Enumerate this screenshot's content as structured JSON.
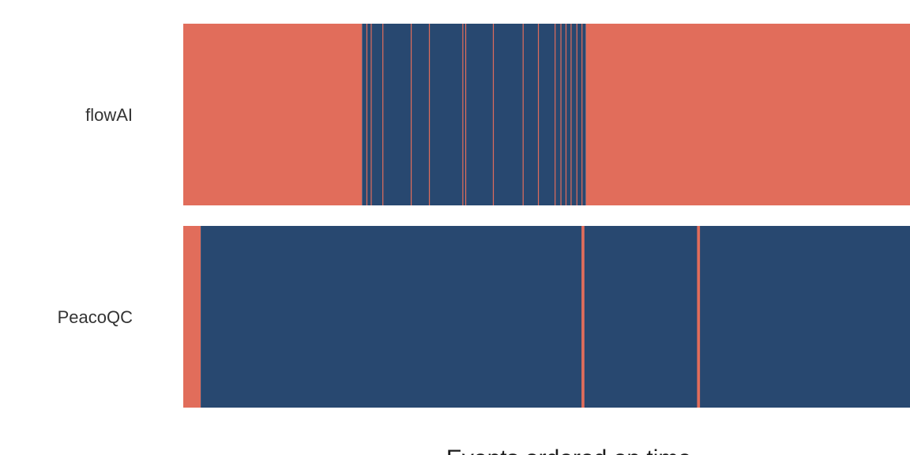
{
  "chart_data": {
    "type": "heatmap",
    "xlabel": "Events ordered on time",
    "x_range": [
      0,
      100
    ],
    "colors": {
      "segment_a": "#E16D5B",
      "segment_b": "#284870"
    },
    "rows": [
      {
        "label": "flowAI",
        "segments": [
          {
            "start": 0.0,
            "end": 24.6,
            "color": "#E16D5B"
          },
          {
            "start": 24.6,
            "end": 55.4,
            "color": "#284870"
          },
          {
            "start": 55.4,
            "end": 100.0,
            "color": "#E16D5B"
          }
        ],
        "stripes": [
          {
            "at": 25.2,
            "width": 0.12,
            "color": "#E16D5B"
          },
          {
            "at": 25.8,
            "width": 0.12,
            "color": "#E16D5B"
          },
          {
            "at": 27.4,
            "width": 0.12,
            "color": "#E16D5B"
          },
          {
            "at": 31.3,
            "width": 0.12,
            "color": "#E16D5B"
          },
          {
            "at": 33.8,
            "width": 0.12,
            "color": "#E16D5B"
          },
          {
            "at": 38.4,
            "width": 0.12,
            "color": "#E16D5B"
          },
          {
            "at": 38.8,
            "width": 0.12,
            "color": "#E16D5B"
          },
          {
            "at": 42.6,
            "width": 0.12,
            "color": "#E16D5B"
          },
          {
            "at": 46.7,
            "width": 0.12,
            "color": "#E16D5B"
          },
          {
            "at": 48.8,
            "width": 0.12,
            "color": "#E16D5B"
          },
          {
            "at": 51.1,
            "width": 0.12,
            "color": "#E16D5B"
          },
          {
            "at": 51.9,
            "width": 0.12,
            "color": "#E16D5B"
          },
          {
            "at": 52.6,
            "width": 0.12,
            "color": "#E16D5B"
          },
          {
            "at": 53.3,
            "width": 0.12,
            "color": "#E16D5B"
          },
          {
            "at": 54.1,
            "width": 0.12,
            "color": "#E16D5B"
          },
          {
            "at": 54.8,
            "width": 0.12,
            "color": "#E16D5B"
          }
        ]
      },
      {
        "label": "PeacoQC",
        "segments": [
          {
            "start": 0.0,
            "end": 2.4,
            "color": "#E16D5B"
          },
          {
            "start": 2.4,
            "end": 100.0,
            "color": "#284870"
          }
        ],
        "stripes": [
          {
            "at": 54.8,
            "width": 0.4,
            "color": "#E16D5B"
          },
          {
            "at": 70.7,
            "width": 0.4,
            "color": "#E16D5B"
          }
        ]
      }
    ]
  }
}
